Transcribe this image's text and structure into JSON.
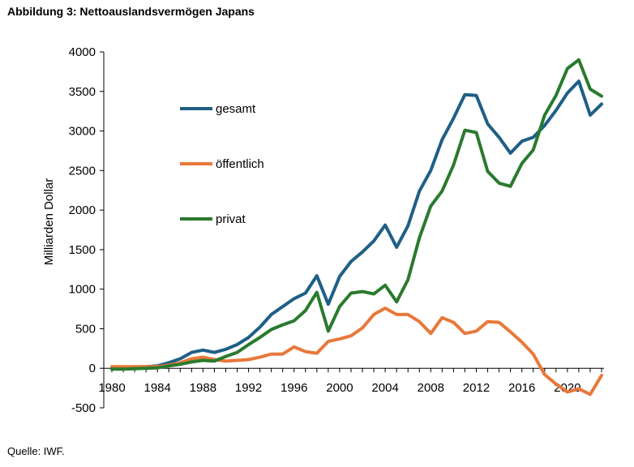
{
  "title": "Abbildung 3: Nettoauslandsvermögen Japans",
  "source": "Quelle: IWF.",
  "chart_data": {
    "type": "line",
    "title": "Abbildung 3: Nettoauslandsvermögen Japans",
    "xlabel": "",
    "ylabel": "Milliarden Dollar",
    "xlim": [
      1980,
      2023
    ],
    "ylim": [
      -500,
      4000
    ],
    "xticks": [
      1980,
      1984,
      1988,
      1992,
      1996,
      2000,
      2004,
      2008,
      2012,
      2016,
      2020
    ],
    "yticks": [
      -500,
      0,
      500,
      1000,
      1500,
      2000,
      2500,
      3000,
      3500,
      4000
    ],
    "grid": false,
    "legend_position": "upper-left (inside)",
    "x": [
      1980,
      1981,
      1982,
      1983,
      1984,
      1985,
      1986,
      1987,
      1988,
      1989,
      1990,
      1991,
      1992,
      1993,
      1994,
      1995,
      1996,
      1997,
      1998,
      1999,
      2000,
      2001,
      2002,
      2003,
      2004,
      2005,
      2006,
      2007,
      2008,
      2009,
      2010,
      2011,
      2012,
      2013,
      2014,
      2015,
      2016,
      2017,
      2018,
      2019,
      2020,
      2021,
      2022,
      2023
    ],
    "series": [
      {
        "name": "gesamt",
        "color": "#1f5f86",
        "values": [
          10,
          5,
          15,
          20,
          30,
          70,
          120,
          200,
          230,
          200,
          240,
          300,
          390,
          520,
          680,
          780,
          880,
          950,
          1170,
          810,
          1160,
          1350,
          1470,
          1610,
          1810,
          1530,
          1800,
          2240,
          2500,
          2890,
          3160,
          3460,
          3450,
          3090,
          2920,
          2720,
          2870,
          2920,
          3070,
          3260,
          3480,
          3630,
          3200,
          3340
        ]
      },
      {
        "name": "öffentlich",
        "color": "#e8783a",
        "values": [
          20,
          20,
          20,
          20,
          20,
          40,
          70,
          120,
          140,
          110,
          90,
          100,
          110,
          140,
          180,
          180,
          270,
          210,
          190,
          340,
          370,
          410,
          510,
          680,
          760,
          680,
          680,
          590,
          440,
          640,
          580,
          440,
          470,
          590,
          580,
          460,
          330,
          180,
          -80,
          -200,
          -300,
          -260,
          -330,
          -90
        ]
      },
      {
        "name": "privat",
        "color": "#2a7a2e",
        "values": [
          -10,
          -10,
          -5,
          0,
          5,
          30,
          50,
          80,
          100,
          90,
          150,
          200,
          300,
          390,
          490,
          550,
          600,
          730,
          960,
          470,
          780,
          950,
          970,
          940,
          1050,
          840,
          1120,
          1650,
          2050,
          2240,
          2570,
          3010,
          2980,
          2490,
          2340,
          2300,
          2590,
          2760,
          3200,
          3450,
          3790,
          3900,
          3530,
          3440
        ]
      }
    ]
  }
}
